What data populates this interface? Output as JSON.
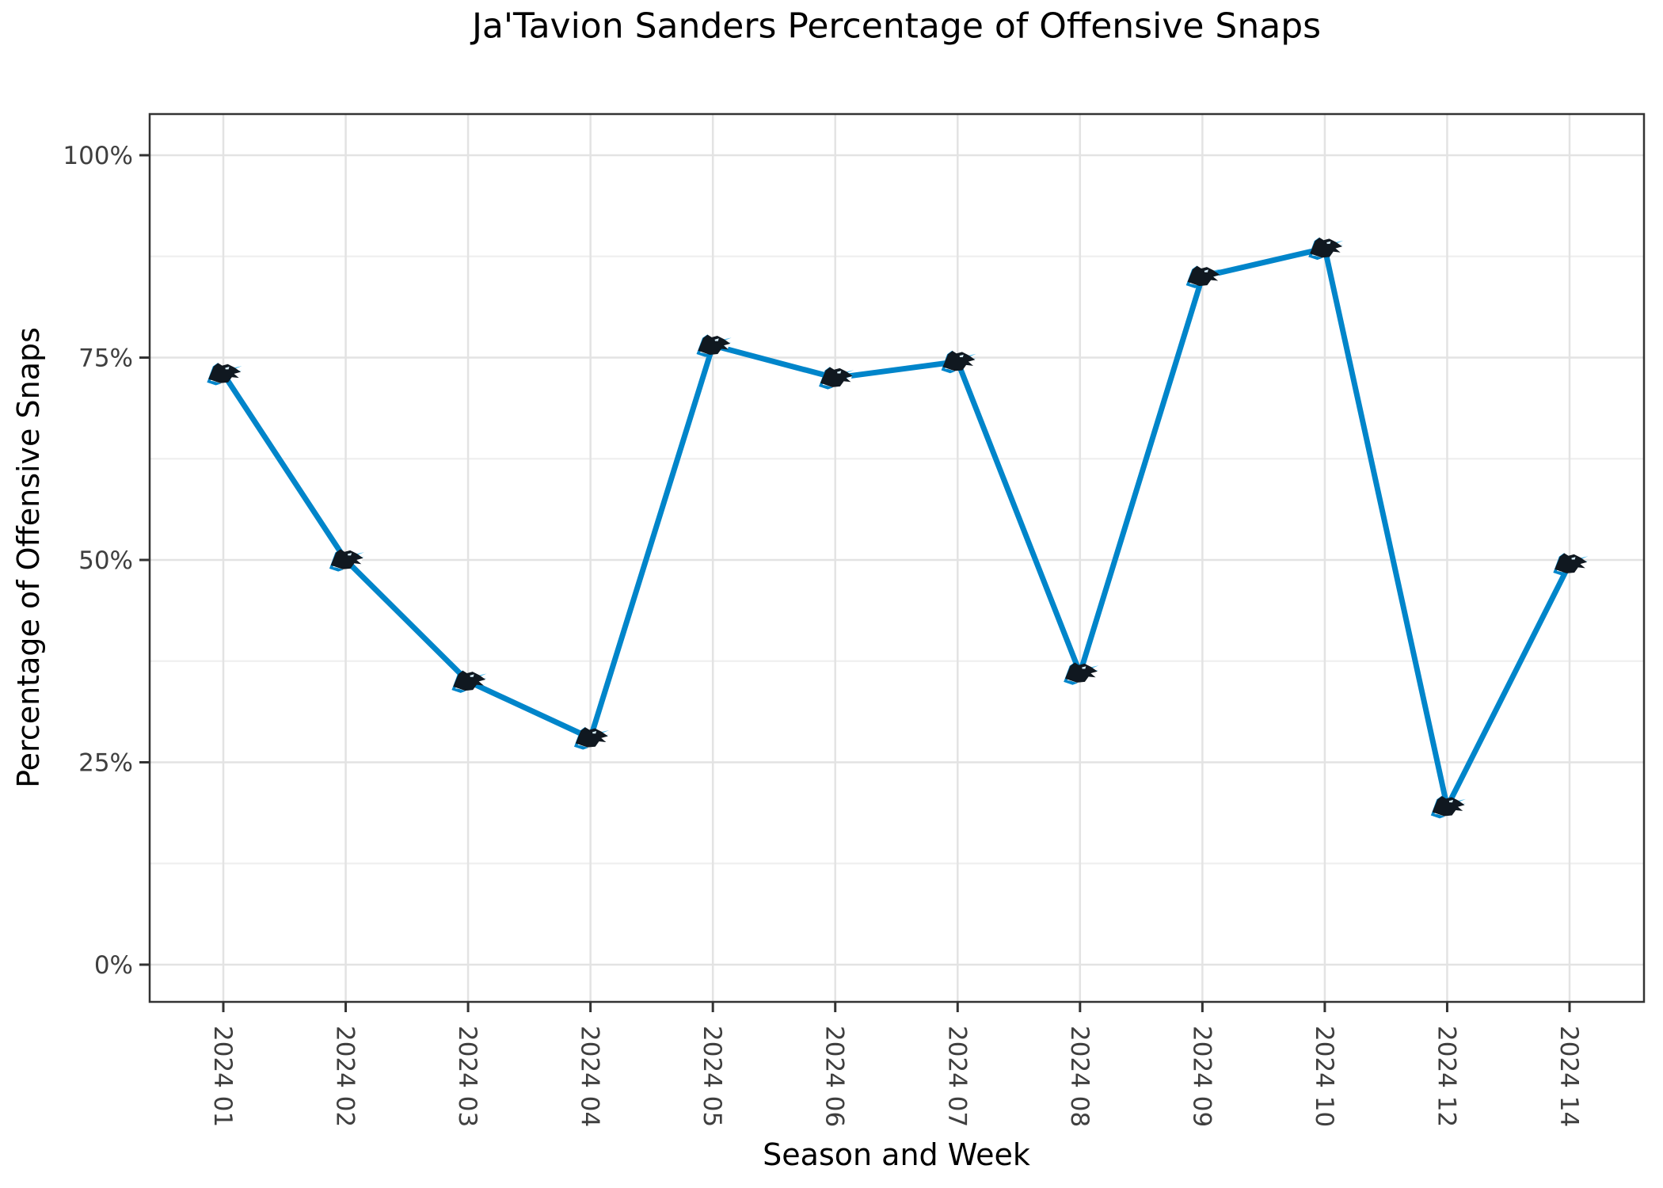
{
  "chart_data": {
    "type": "line",
    "title": "Ja'Tavion Sanders Percentage of Offensive Snaps",
    "xlabel": "Season and Week",
    "ylabel": "Percentage of Offensive Snaps",
    "categories": [
      "2024 01",
      "2024 02",
      "2024 03",
      "2024 04",
      "2024 05",
      "2024 06",
      "2024 07",
      "2024 08",
      "2024 09",
      "2024 10",
      "2024 12",
      "2024 14"
    ],
    "values": [
      73,
      50,
      35,
      28,
      76.5,
      72.5,
      74.5,
      36,
      85,
      88.5,
      19.5,
      49.5
    ],
    "y_axis": {
      "tick_values": [
        0,
        25,
        50,
        75,
        100
      ],
      "tick_labels": [
        "0%",
        "25%",
        "50%",
        "75%",
        "100%"
      ],
      "minor_tick_values": [
        12.5,
        37.5,
        62.5,
        87.5
      ],
      "range": [
        0,
        100
      ],
      "unit": "%"
    },
    "grid": "horizontal major+minor, vertical major at each category",
    "legend": "none",
    "marker": "carolina-panthers-logo",
    "colors": {
      "line": "#0085CA",
      "marker_black": "#101820",
      "marker_blue": "#0085CA",
      "marker_whisker_blue": "#55BDEC",
      "grid_major": "#E3E3E3",
      "grid_minor": "#EFEFEF",
      "axis_border": "#333333",
      "tick_text": "#3F3F3F",
      "title_text": "#000000",
      "background": "#FFFFFF"
    }
  }
}
